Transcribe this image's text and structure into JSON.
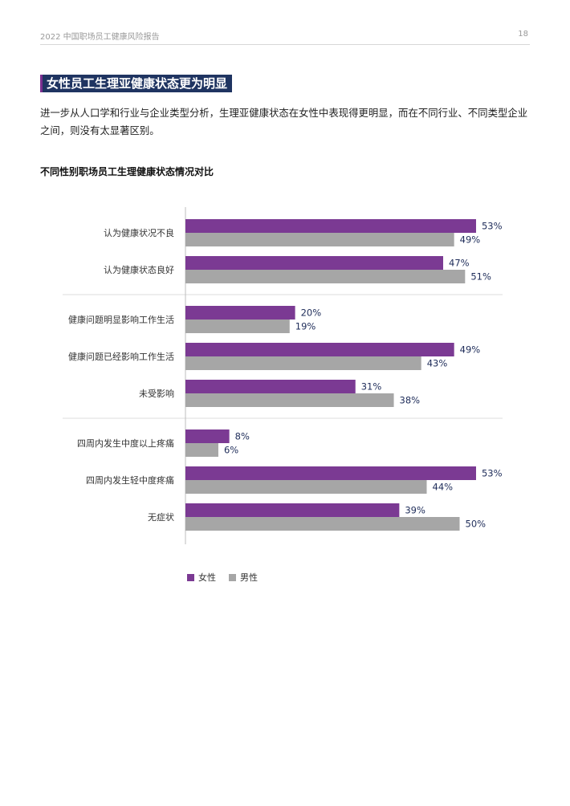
{
  "header": {
    "report_title": "2022 中国职场员工健康风险报告",
    "page_number": "18"
  },
  "section": {
    "title": "女性员工生理亚健康状态更为明显",
    "intro": "进一步从人口学和行业与企业类型分析，生理亚健康状态在女性中表现得更明显，而在不同行业、不同类型企业之间，则没有太显著区别。"
  },
  "chart_data": {
    "type": "bar",
    "orientation": "horizontal",
    "title": "不同性别职场员工生理健康状态情况对比",
    "categories": [
      "认为健康状况不良",
      "认为健康状态良好",
      "健康问题明显影响工作生活",
      "健康问题已经影响工作生活",
      "未受影响",
      "四周内发生中度以上疼痛",
      "四周内发生轻中度疼痛",
      "无症状"
    ],
    "groups": [
      [
        0,
        1
      ],
      [
        2,
        3,
        4
      ],
      [
        5,
        6,
        7
      ]
    ],
    "series": [
      {
        "name": "女性",
        "color": "#7b3a93",
        "values": [
          53,
          47,
          20,
          49,
          31,
          8,
          53,
          39
        ],
        "labels": [
          "53%",
          "47%",
          "20%",
          "49%",
          "31%",
          "8%",
          "53%",
          "39%"
        ]
      },
      {
        "name": "男性",
        "color": "#a6a6a6",
        "values": [
          49,
          51,
          19,
          43,
          38,
          6,
          44,
          50
        ],
        "labels": [
          "49%",
          "51%",
          "19%",
          "43%",
          "38%",
          "6%",
          "44%",
          "50%"
        ]
      }
    ],
    "xlim": [
      0,
      60
    ],
    "legend_position": "bottom-left",
    "grid": false
  }
}
